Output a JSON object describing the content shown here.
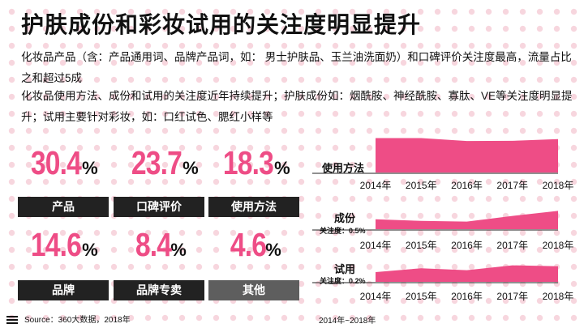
{
  "title": "护肤成份和彩妆试用的关注度明显提升",
  "paragraph1": "化妆品产品（含：产品通用词、品牌产品词，如： 男士护肤品、玉兰油洗面奶）和口碑评价关注度最高，流量占比之和超过5成",
  "paragraph2": "化妆品使用方法、成份和试用的关注度近年持续提升；护肤成份如：烟酰胺、神经酰胺、寡肽、VE等关注度明显提升；试用主要针对彩妆，如：口红试色、腮红小样等",
  "stats": [
    {
      "value": "30.4",
      "unit": "%",
      "label": "产品"
    },
    {
      "value": "23.7",
      "unit": "%",
      "label": "口碑评价"
    },
    {
      "value": "18.3",
      "unit": "%",
      "label": "使用方法"
    },
    {
      "value": "14.6",
      "unit": "%",
      "label": "品牌"
    },
    {
      "value": "8.4",
      "unit": "%",
      "label": "品牌专卖"
    },
    {
      "value": "4.6",
      "unit": "%",
      "label": "其他"
    }
  ],
  "source": "Source：360大数据，2018年",
  "date_range": "2014年~2018年",
  "colors": {
    "accent": "#ee4d86",
    "dark": "#222222",
    "gray": "#5e5e5e",
    "dots": "#f7d6de"
  },
  "chart_data": [
    {
      "type": "area",
      "title": "使用方法",
      "subtitle": "",
      "x": [
        "2014年",
        "2015年",
        "2016年",
        "2017年",
        "2018年"
      ],
      "series": [
        {
          "values": [
            18.9,
            18.9,
            17.3,
            17.4,
            18.3
          ]
        }
      ],
      "ylim": [
        0,
        20
      ]
    },
    {
      "type": "area",
      "title": "成份",
      "subtitle": "关注度：0.5%",
      "x": [
        "2014年",
        "2015年",
        "2016年",
        "2017年",
        "2018年"
      ],
      "series": [
        {
          "values": [
            0.3,
            0.25,
            0.23,
            0.4,
            0.55
          ]
        }
      ],
      "ylim": [
        0,
        1
      ]
    },
    {
      "type": "area",
      "title": "试用",
      "subtitle": "关注度：0.2%",
      "x": [
        "2014年",
        "2015年",
        "2016年",
        "2017年",
        "2018年"
      ],
      "series": [
        {
          "values": [
            0.1,
            0.14,
            0.12,
            0.17,
            0.16
          ]
        }
      ],
      "ylim": [
        0,
        0.3
      ]
    }
  ]
}
